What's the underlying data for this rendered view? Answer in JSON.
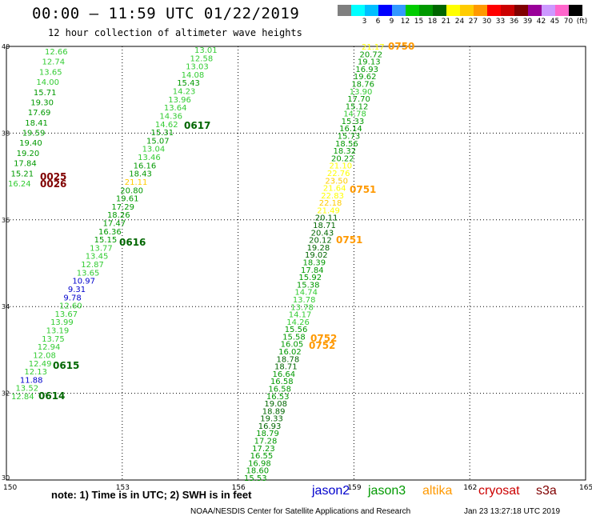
{
  "header": {
    "title": "00:00 – 11:59 UTC 01/22/2019",
    "subtitle": "12 hour collection of altimeter wave heights"
  },
  "scale": {
    "colors": [
      "#7f7f7f",
      "#00ffff",
      "#00bfff",
      "#0000ff",
      "#3399ff",
      "#00cc00",
      "#009900",
      "#006600",
      "#ffff00",
      "#ffcc00",
      "#ff9900",
      "#ff0000",
      "#cc0000",
      "#800000",
      "#990099",
      "#cc99ff",
      "#ff66cc",
      "#000000"
    ],
    "labels": [
      "",
      "3",
      "6",
      "9",
      "12",
      "15",
      "18",
      "21",
      "24",
      "27",
      "30",
      "33",
      "36",
      "39",
      "42",
      "45",
      "70",
      "(ft)"
    ]
  },
  "map": {
    "lon_ticks": [
      "150",
      "153",
      "156",
      "159",
      "162",
      "165"
    ],
    "lat_ticks": [
      "30",
      "32",
      "34",
      "36",
      "38",
      "40"
    ],
    "x_range": [
      150,
      165
    ],
    "y_range": [
      30,
      40
    ],
    "track_a": {
      "values": [
        "12.66",
        "12.74",
        "13.65",
        "14.00",
        "15.71",
        "19.30",
        "17.69",
        "18.41",
        "19.59",
        "19.40",
        "19.20",
        "17.84",
        "15.21",
        "16.24"
      ],
      "colors": [
        "#33cc33",
        "#33cc33",
        "#33cc33",
        "#33cc33",
        "#009900",
        "#009900",
        "#009900",
        "#009900",
        "#009900",
        "#009900",
        "#009900",
        "#009900",
        "#009900",
        "#33cc33"
      ]
    },
    "track_b": {
      "values": [
        "13.01",
        "12.58",
        "13.03",
        "14.08",
        "15.43",
        "14.23",
        "13.96",
        "13.64",
        "14.36",
        "14.62",
        "15.31",
        "15.07",
        "13.04",
        "13.46",
        "16.16",
        "18.43",
        "21.11",
        "20.80",
        "19.61",
        "17.29",
        "18.26",
        "17.47",
        "16.36",
        "15.15",
        "13.77",
        "13.45",
        "12.87",
        "13.65",
        "10.97",
        "9.31",
        "9.78",
        "12.60",
        "13.67",
        "13.99",
        "13.19",
        "13.75",
        "12.94",
        "12.08",
        "12.49",
        "12.13",
        "11.88",
        "13.52",
        "12.84"
      ],
      "colors": [
        "#33cc33",
        "#33cc33",
        "#33cc33",
        "#33cc33",
        "#009900",
        "#33cc33",
        "#33cc33",
        "#33cc33",
        "#33cc33",
        "#33cc33",
        "#009900",
        "#009900",
        "#33cc33",
        "#33cc33",
        "#009900",
        "#009900",
        "#ffcc00",
        "#009900",
        "#009900",
        "#009900",
        "#009900",
        "#009900",
        "#009900",
        "#009900",
        "#33cc33",
        "#33cc33",
        "#33cc33",
        "#33cc33",
        "#0000cc",
        "#0000cc",
        "#0000cc",
        "#33cc33",
        "#33cc33",
        "#33cc33",
        "#33cc33",
        "#33cc33",
        "#33cc33",
        "#33cc33",
        "#33cc33",
        "#33cc33",
        "#0000cc",
        "#33cc33",
        "#33cc33"
      ]
    },
    "track_c": {
      "values": [
        "21.17",
        "20.72",
        "19.13",
        "16.93",
        "19.62",
        "18.76",
        "13.90",
        "17.70",
        "15.12",
        "14.78",
        "15.33",
        "16.14",
        "15.73",
        "18.56",
        "18.32",
        "20.22",
        "21.10",
        "22.76",
        "23.50",
        "21.64",
        "22.83",
        "22.18",
        "21.49",
        "20.11",
        "18.71",
        "20.43",
        "20.12",
        "19.28",
        "19.02",
        "18.39",
        "17.84",
        "15.92",
        "15.38",
        "14.74",
        "13.78",
        "13.78",
        "14.17",
        "14.26",
        "15.56",
        "15.58",
        "16.05",
        "16.02",
        "18.78",
        "18.71",
        "16.64",
        "16.58",
        "16.58",
        "16.53",
        "19.08",
        "18.89",
        "19.33",
        "16.93",
        "18.79",
        "17.28",
        "17.23",
        "16.55",
        "16.98",
        "18.60",
        "15.53"
      ],
      "colors": [
        "#ffff00",
        "#009900",
        "#009900",
        "#009900",
        "#009900",
        "#009900",
        "#33cc33",
        "#009900",
        "#009900",
        "#33cc33",
        "#009900",
        "#009900",
        "#009900",
        "#009900",
        "#009900",
        "#009900",
        "#ffff00",
        "#ffff00",
        "#ffcc00",
        "#ffff00",
        "#ffff00",
        "#ffcc00",
        "#ffff00",
        "#006600",
        "#006600",
        "#006600",
        "#006600",
        "#006600",
        "#006600",
        "#009900",
        "#009900",
        "#009900",
        "#009900",
        "#33cc33",
        "#33cc33",
        "#33cc33",
        "#33cc33",
        "#33cc33",
        "#009900",
        "#009900",
        "#009900",
        "#009900",
        "#006600",
        "#006600",
        "#009900",
        "#009900",
        "#009900",
        "#009900",
        "#006600",
        "#006600",
        "#006600",
        "#006600",
        "#009900",
        "#009900",
        "#009900",
        "#009900",
        "#009900",
        "#009900",
        "#009900"
      ]
    },
    "time_labels": [
      {
        "text": "0614",
        "color": "#006600"
      },
      {
        "text": "0615",
        "color": "#006600"
      },
      {
        "text": "0616",
        "color": "#006600"
      },
      {
        "text": "0617",
        "color": "#006600"
      },
      {
        "text": "0025",
        "color": "#800000"
      },
      {
        "text": "0026",
        "color": "#800000"
      },
      {
        "text": "0750",
        "color": "#ff9900"
      },
      {
        "text": "0751",
        "color": "#ff9900"
      },
      {
        "text": "0751",
        "color": "#ff9900"
      },
      {
        "text": "0752",
        "color": "#ff9900"
      },
      {
        "text": "0752",
        "color": "#ff9900"
      }
    ]
  },
  "footer": {
    "note": "note:  1) Time is in UTC;  2) SWH is in feet",
    "satellites": [
      {
        "name": "jason2",
        "color": "#0000cc"
      },
      {
        "name": "jason3",
        "color": "#009900"
      },
      {
        "name": "altika",
        "color": "#ff9900"
      },
      {
        "name": "cryosat",
        "color": "#cc0000"
      },
      {
        "name": "s3a",
        "color": "#800000"
      }
    ],
    "credit": "NOAA/NESDIS Center for Satellite Applications and Research",
    "timestamp": "Jan 23 13:27:18 UTC 2019"
  }
}
